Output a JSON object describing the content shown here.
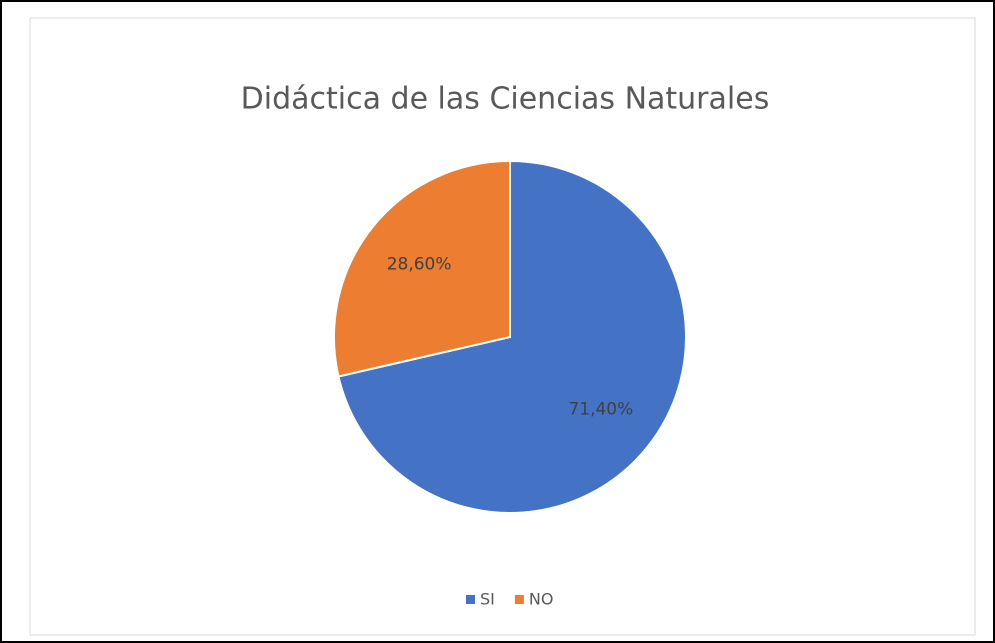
{
  "chart_data": {
    "type": "pie",
    "title": "Didáctica de las Ciencias Naturales",
    "categories": [
      "SI",
      "NO"
    ],
    "values": [
      71.4,
      28.6
    ],
    "value_labels": [
      "71,40%",
      "28,60%"
    ],
    "colors": [
      "#4472c4",
      "#ed7d31"
    ],
    "legend": "bottom"
  }
}
